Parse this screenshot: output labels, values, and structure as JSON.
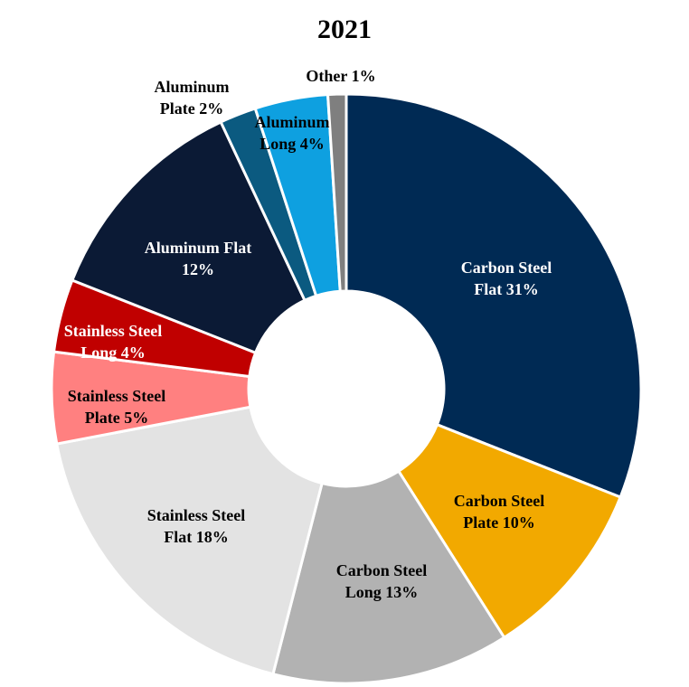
{
  "chart_data": {
    "type": "donut",
    "title": "2021",
    "categories": [
      "Carbon Steel Flat",
      "Carbon Steel Plate",
      "Carbon Steel Long",
      "Stainless Steel Flat",
      "Stainless Steel Plate",
      "Stainless Steel Long",
      "Aluminum Flat",
      "Aluminum Plate",
      "Aluminum Long",
      "Other"
    ],
    "values": [
      31,
      10,
      13,
      18,
      5,
      4,
      12,
      2,
      4,
      1
    ],
    "value_labels": [
      "31%",
      "10%",
      "13%",
      "18%",
      "5%",
      "4%",
      "12%",
      "2%",
      "4%",
      "1%"
    ],
    "colors": [
      "#002a54",
      "#f2a900",
      "#b2b2b2",
      "#e3e3e3",
      "#ff8080",
      "#c00000",
      "#0b1a35",
      "#0b5a80",
      "#0ea0e0",
      "#7f7f7f"
    ]
  }
}
